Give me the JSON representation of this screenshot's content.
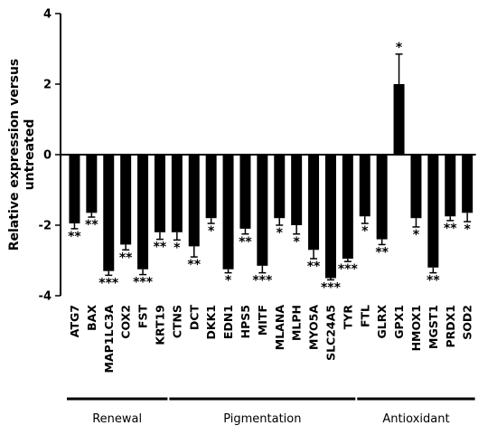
{
  "chart_data": {
    "type": "bar",
    "ylabel": [
      "Relative expression versus",
      "untreated"
    ],
    "ylim": [
      -4,
      4
    ],
    "yticks": [
      4,
      2,
      0,
      -2,
      -4
    ],
    "categories": [
      "ATG7",
      "BAX",
      "MAP1LC3A",
      "COX2",
      "FST",
      "KRT19",
      "CTNS",
      "DCT",
      "DKK1",
      "EDN1",
      "HPS5",
      "MITF",
      "MLANA",
      "MLPH",
      "MYO5A",
      "SLC24A5",
      "TYR",
      "FTL",
      "GLRX",
      "GPX1",
      "HMOX1",
      "MGST1",
      "PRDX1",
      "SOD2"
    ],
    "values": [
      -1.95,
      -1.65,
      -3.3,
      -2.55,
      -3.25,
      -2.2,
      -2.2,
      -2.6,
      -1.8,
      -3.25,
      -2.1,
      -3.15,
      -1.8,
      -2.0,
      -2.7,
      -3.5,
      -2.95,
      -1.75,
      -2.4,
      2.0,
      -1.8,
      -3.2,
      -1.75,
      -1.65
    ],
    "errors": [
      0.15,
      0.12,
      0.12,
      0.15,
      0.15,
      0.2,
      0.22,
      0.3,
      0.15,
      0.1,
      0.15,
      0.2,
      0.2,
      0.25,
      0.25,
      0.05,
      0.08,
      0.2,
      0.15,
      0.85,
      0.25,
      0.15,
      0.12,
      0.25
    ],
    "significance": [
      "**",
      "**",
      "***",
      "**",
      "***",
      "**",
      "*",
      "**",
      "*",
      "*",
      "**",
      "***",
      "*",
      "*",
      "**",
      "***",
      "***",
      "*",
      "**",
      "*",
      "*",
      "**",
      "**",
      "*"
    ],
    "groups": [
      {
        "label": "Renewal",
        "first": 0,
        "last": 5
      },
      {
        "label": "Pigmentation",
        "first": 6,
        "last": 16
      },
      {
        "label": "Antioxidant",
        "first": 17,
        "last": 23
      }
    ],
    "grid": false
  }
}
